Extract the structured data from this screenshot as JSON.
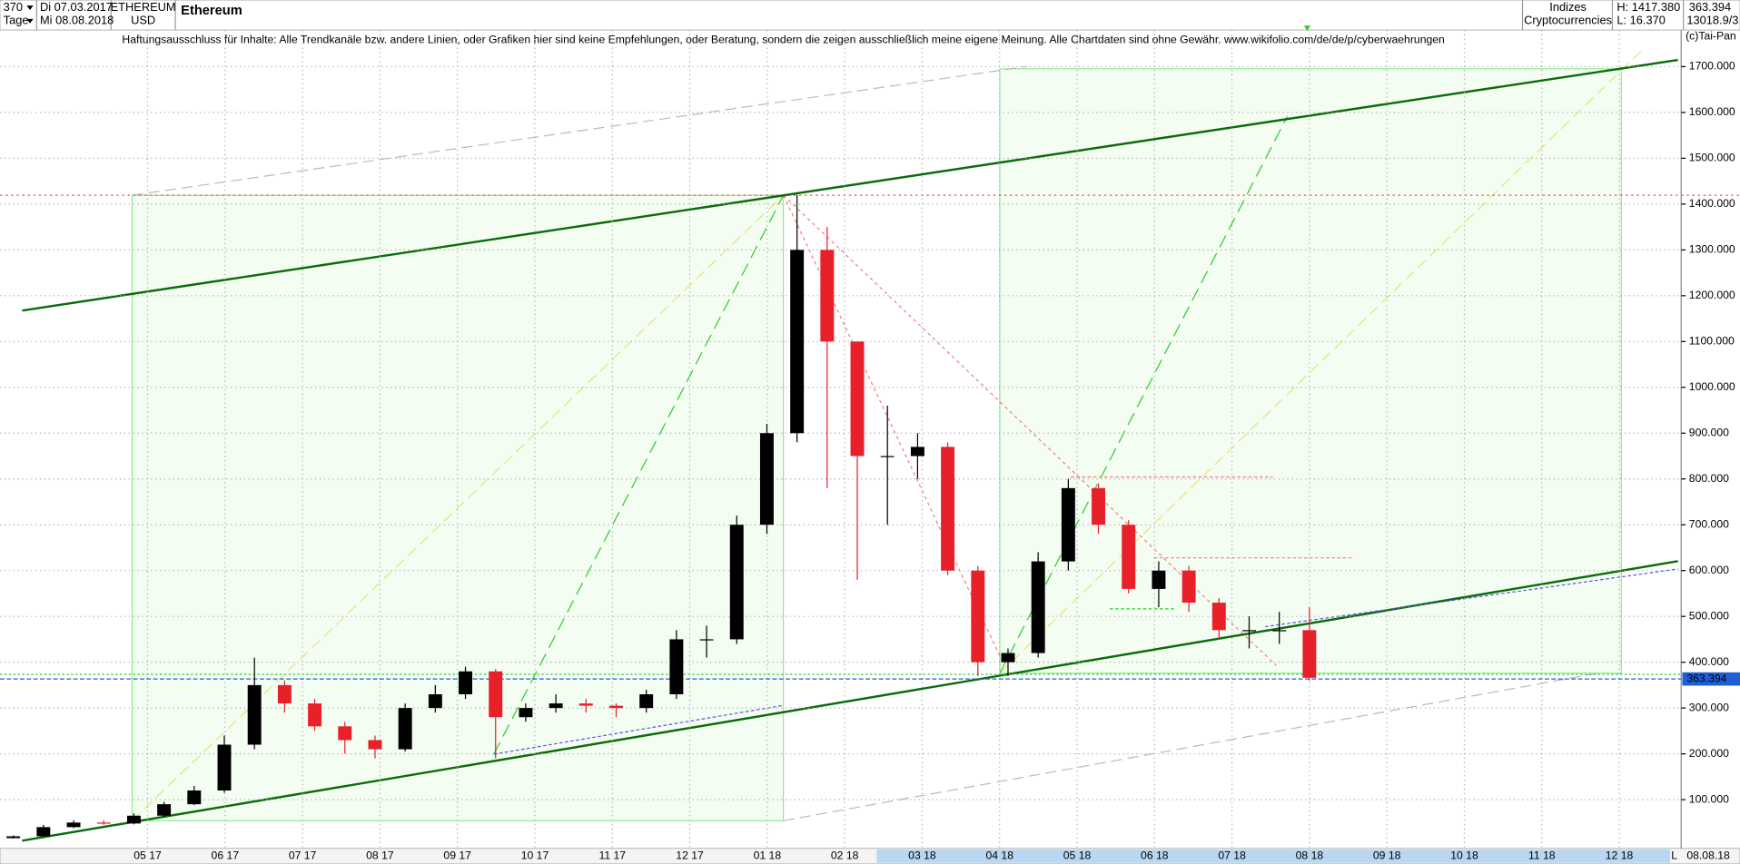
{
  "header": {
    "count": "370",
    "from_date": "Di 07.03.2017",
    "period": "Tage",
    "to_date": "Mi 08.08.2018",
    "symbol": "ETHEREUM",
    "currency": "USD",
    "name": "Ethereum",
    "group": "Indizes",
    "sector": "Cryptocurrencies",
    "high": "H: 1417.380",
    "low": "L: 16.370",
    "last": "363.394",
    "extra": "13018.9/3",
    "brand": "(c)Tai-Pan",
    "end_date": "08.08.18",
    "end_flag": "L"
  },
  "chart_data": {
    "type": "candlestick",
    "title": "Ethereum",
    "disclaimer": "Haftungsausschluss für Inhalte: Alle Trendkanäle bzw. andere Linien, oder Grafiken hier sind keine Empfehlungen, oder Beratung, sondern die zeigen ausschließlich meine eigene Meinung. Alle Chartdaten sind ohne Gewähr.  www.wikifolio.com/de/de/p/cyberwaehrungen",
    "categories": [
      null,
      null,
      null,
      null,
      null,
      null,
      null,
      null,
      null,
      null,
      null,
      null,
      null,
      null,
      null,
      null,
      null,
      null,
      null,
      null,
      null,
      null,
      null,
      null,
      null,
      null,
      null,
      null,
      null,
      null,
      null,
      null,
      null,
      null,
      null,
      null,
      null,
      null,
      null,
      null,
      null,
      null,
      null,
      null
    ],
    "open": [
      16,
      20,
      40,
      50,
      48,
      65,
      90,
      120,
      220,
      350,
      310,
      260,
      230,
      210,
      300,
      330,
      380,
      280,
      300,
      310,
      305,
      300,
      330,
      450,
      450,
      700,
      900,
      1300,
      1100,
      850,
      850,
      870,
      600,
      400,
      420,
      620,
      780,
      700,
      560,
      600,
      530,
      470,
      470,
      470
    ],
    "high": [
      22,
      45,
      55,
      55,
      70,
      95,
      130,
      240,
      410,
      360,
      320,
      270,
      240,
      310,
      350,
      390,
      385,
      310,
      330,
      320,
      310,
      340,
      470,
      480,
      720,
      920,
      1420,
      1350,
      1100,
      960,
      900,
      880,
      610,
      430,
      640,
      800,
      790,
      710,
      620,
      610,
      540,
      500,
      510,
      520
    ],
    "low": [
      15,
      19,
      38,
      45,
      46,
      62,
      88,
      115,
      210,
      290,
      250,
      200,
      190,
      205,
      290,
      320,
      190,
      270,
      290,
      290,
      280,
      290,
      320,
      410,
      440,
      680,
      880,
      780,
      580,
      700,
      800,
      590,
      370,
      370,
      410,
      600,
      680,
      550,
      520,
      510,
      450,
      430,
      440,
      360
    ],
    "close": [
      20,
      40,
      50,
      48,
      65,
      90,
      120,
      220,
      350,
      310,
      260,
      230,
      210,
      300,
      330,
      380,
      280,
      300,
      310,
      305,
      300,
      330,
      450,
      450,
      700,
      900,
      1300,
      1100,
      850,
      850,
      870,
      600,
      400,
      420,
      620,
      780,
      700,
      560,
      600,
      530,
      470,
      470,
      470,
      366
    ],
    "up_color": "#000000",
    "down_color": "#e8202a",
    "x_labels": [
      "05 17",
      "06 17",
      "07 17",
      "08 17",
      "09 17",
      "10 17",
      "11 17",
      "12 17",
      "01 18",
      "02 18",
      "03 18",
      "04 18",
      "05 18",
      "06 18",
      "07 18",
      "08 18",
      "09 18",
      "10 18",
      "11 18",
      "12 18"
    ],
    "ylim": [
      25,
      1780
    ],
    "yticks": [
      {
        "value": 100,
        "label": "100.000"
      },
      {
        "value": 200,
        "label": "200.000"
      },
      {
        "value": 300,
        "label": "300.000"
      },
      {
        "value": 400,
        "label": "400.000"
      },
      {
        "value": 500,
        "label": "500.000"
      },
      {
        "value": 600,
        "label": "600.000"
      },
      {
        "value": 700,
        "label": "700.000"
      },
      {
        "value": 800,
        "label": "800.000"
      },
      {
        "value": 900,
        "label": "900.000"
      },
      {
        "value": 1000,
        "label": "1000.000"
      },
      {
        "value": 1100,
        "label": "1100.000"
      },
      {
        "value": 1200,
        "label": "1200.000"
      },
      {
        "value": 1300,
        "label": "1300.000"
      },
      {
        "value": 1400,
        "label": "1400.000"
      },
      {
        "value": 1500,
        "label": "1500.000"
      },
      {
        "value": 1600,
        "label": "1600.000"
      },
      {
        "value": 1700,
        "label": "1700.000"
      }
    ],
    "grid": true,
    "last_value": 363.394,
    "last_color": "#1f5fd6"
  }
}
